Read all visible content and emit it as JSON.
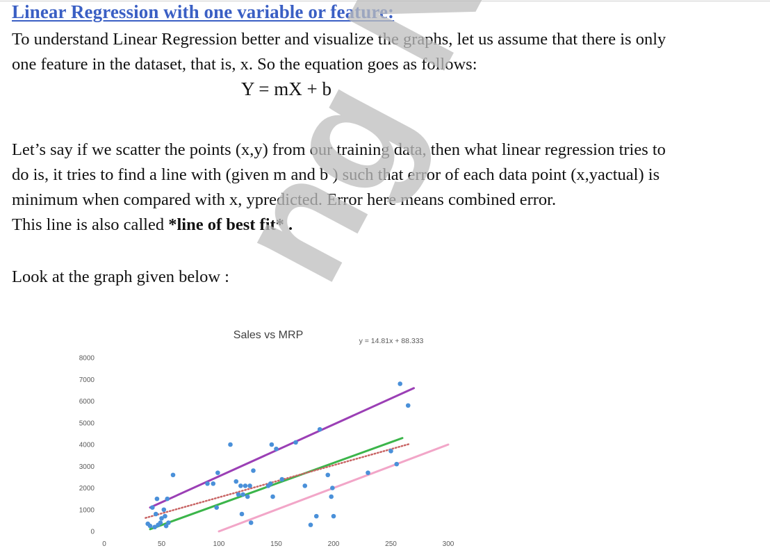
{
  "document": {
    "heading": "Linear Regression with one variable or feature:",
    "intro_line1": "To understand Linear Regression better and visualize the graphs, let us assume that there is only",
    "intro_line2": "one feature in the dataset, that is, x. So the equation goes as follows:",
    "equation": "Y = mX + b",
    "body_line1": "Let’s say if we scatter the points (x,y) from our training data, then what linear regression tries to",
    "body_line2": "do is, it tries to find a line with (given m and b ) such that error of each data point (x,yactual)  is",
    "body_line3": "minimum when compared with x, ypredicted. Error here means combined error.",
    "body_line4_prefix": "This line is also called ",
    "body_line4_bold": "*line of best fit* .",
    "look_text": "Look at the graph given below :"
  },
  "watermark": {
    "text": "ng Ninja",
    "color": "#bdbdbd"
  },
  "chart_data": {
    "type": "scatter",
    "title": "Sales vs MRP",
    "trendline_equation": "y = 14.81x + 88.333",
    "xlim": [
      0,
      300
    ],
    "ylim": [
      0,
      8000
    ],
    "x_ticks": [
      "0",
      "50",
      "100",
      "150",
      "200",
      "250",
      "300"
    ],
    "y_ticks": [
      "0",
      "1000",
      "2000",
      "3000",
      "4000",
      "5000",
      "6000",
      "7000",
      "8000"
    ],
    "point_color": "#4a90d9",
    "points": [
      {
        "x": 38,
        "y": 350
      },
      {
        "x": 40,
        "y": 250
      },
      {
        "x": 42,
        "y": 1100
      },
      {
        "x": 44,
        "y": 200
      },
      {
        "x": 45,
        "y": 800
      },
      {
        "x": 46,
        "y": 1500
      },
      {
        "x": 47,
        "y": 300
      },
      {
        "x": 49,
        "y": 400
      },
      {
        "x": 50,
        "y": 600
      },
      {
        "x": 52,
        "y": 1000
      },
      {
        "x": 53,
        "y": 700
      },
      {
        "x": 54,
        "y": 250
      },
      {
        "x": 55,
        "y": 1500
      },
      {
        "x": 56,
        "y": 400
      },
      {
        "x": 60,
        "y": 2600
      },
      {
        "x": 90,
        "y": 2200
      },
      {
        "x": 95,
        "y": 2200
      },
      {
        "x": 98,
        "y": 1100
      },
      {
        "x": 99,
        "y": 2700
      },
      {
        "x": 110,
        "y": 4000
      },
      {
        "x": 115,
        "y": 2300
      },
      {
        "x": 117,
        "y": 1700
      },
      {
        "x": 119,
        "y": 2100
      },
      {
        "x": 120,
        "y": 800
      },
      {
        "x": 121,
        "y": 1700
      },
      {
        "x": 123,
        "y": 2100
      },
      {
        "x": 125,
        "y": 1600
      },
      {
        "x": 127,
        "y": 2100
      },
      {
        "x": 128,
        "y": 400
      },
      {
        "x": 130,
        "y": 2800
      },
      {
        "x": 143,
        "y": 2100
      },
      {
        "x": 145,
        "y": 2200
      },
      {
        "x": 146,
        "y": 4000
      },
      {
        "x": 147,
        "y": 1600
      },
      {
        "x": 150,
        "y": 3800
      },
      {
        "x": 155,
        "y": 2400
      },
      {
        "x": 167,
        "y": 4100
      },
      {
        "x": 175,
        "y": 2100
      },
      {
        "x": 180,
        "y": 300
      },
      {
        "x": 185,
        "y": 700
      },
      {
        "x": 188,
        "y": 4700
      },
      {
        "x": 195,
        "y": 2600
      },
      {
        "x": 198,
        "y": 1600
      },
      {
        "x": 199,
        "y": 2000
      },
      {
        "x": 200,
        "y": 700
      },
      {
        "x": 230,
        "y": 2700
      },
      {
        "x": 250,
        "y": 3700
      },
      {
        "x": 255,
        "y": 3100
      },
      {
        "x": 258,
        "y": 6800
      },
      {
        "x": 265,
        "y": 5800
      }
    ],
    "lines": [
      {
        "color": "#9b3fb5",
        "style": "solid",
        "from": [
          40,
          1100
        ],
        "to": [
          270,
          6600
        ]
      },
      {
        "color": "#3bb54a",
        "style": "solid",
        "from": [
          40,
          100
        ],
        "to": [
          260,
          4300
        ]
      },
      {
        "color": "#c86464",
        "style": "dotted",
        "from": [
          36,
          620
        ],
        "to": [
          267,
          4040
        ]
      },
      {
        "color": "#f2a6c8",
        "style": "solid",
        "from": [
          100,
          0
        ],
        "to": [
          300,
          4000
        ]
      }
    ]
  }
}
